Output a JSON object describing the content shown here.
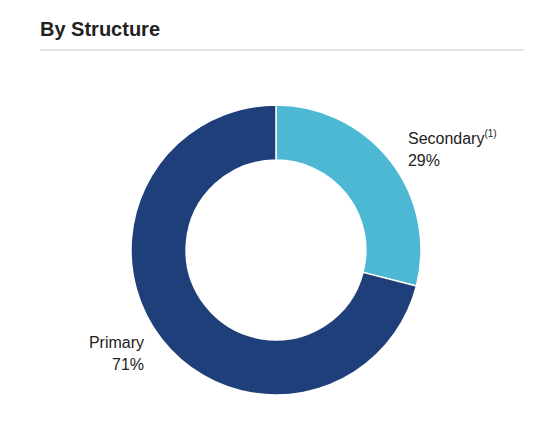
{
  "chart_data": {
    "type": "donut",
    "title": "By Structure",
    "categories": [
      "Secondary",
      "Primary"
    ],
    "values": [
      29,
      71
    ],
    "value_labels": [
      "29%",
      "71%"
    ],
    "data_labels": true,
    "colors": [
      "#4db8d4",
      "#1f3f7a"
    ],
    "annotations": [
      {
        "text": "(1)",
        "category": "Secondary"
      }
    ]
  }
}
